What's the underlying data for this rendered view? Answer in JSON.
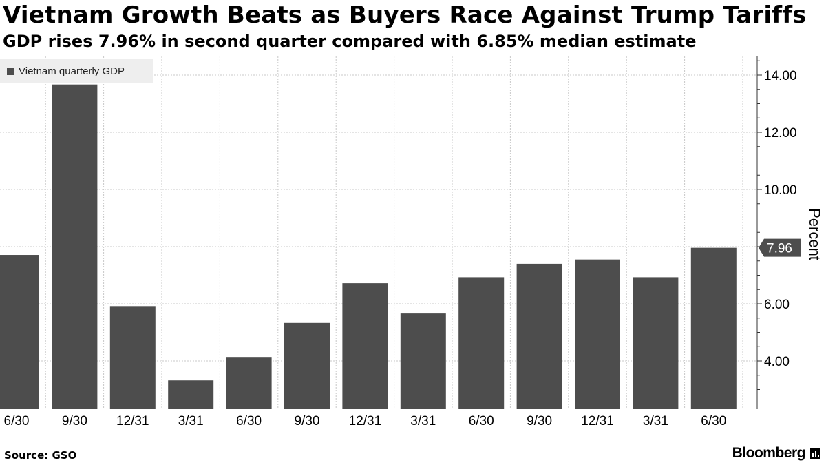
{
  "header": {
    "title": "Vietnam Growth Beats as Buyers Race Against Trump Tariffs",
    "subtitle": "GDP rises 7.96% in second quarter compared with 6.85% median estimate"
  },
  "legend": {
    "label": "Vietnam quarterly GDP",
    "color": "#4d4d4d"
  },
  "footer": {
    "source": "Source: GSO",
    "brand": "Bloomberg",
    "brand_icon": "bloomberg-bars-icon"
  },
  "chart_data": {
    "type": "bar",
    "categories": [
      "6/30",
      "9/30",
      "12/31",
      "3/31",
      "6/30",
      "9/30",
      "12/31",
      "3/31",
      "6/30",
      "9/30",
      "12/31",
      "3/31",
      "6/30"
    ],
    "series": [
      {
        "name": "Vietnam quarterly GDP",
        "values": [
          7.71,
          13.67,
          5.92,
          3.32,
          4.14,
          5.33,
          6.72,
          5.66,
          6.93,
          7.4,
          7.55,
          6.93,
          7.96
        ],
        "color": "#4d4d4d"
      }
    ],
    "ylabel": "Percent",
    "ylim": [
      2.4,
      14.6
    ],
    "yticks": [
      4,
      6,
      10,
      12,
      14
    ],
    "ytick_labels": [
      "4.00",
      "6.00",
      "10.00",
      "12.00",
      "14.00"
    ],
    "last_value_label": "7.96",
    "axis_side": "right",
    "grid": true,
    "legend_position": "top-left"
  }
}
